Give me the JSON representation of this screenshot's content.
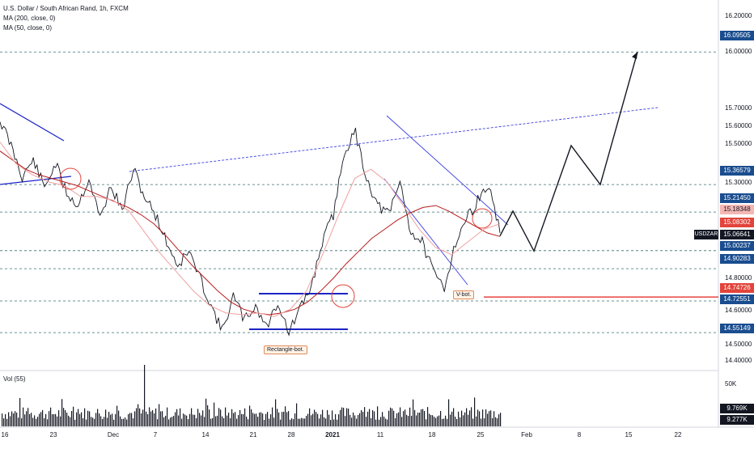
{
  "header": {
    "title": "U.S. Dollar / South African Rand, 1h, FXCM",
    "ma_200": "MA (200, close, 0)",
    "ma_50": "MA (50, close, 0)"
  },
  "volume_panel": {
    "label": "Vol (55)",
    "scale_label": "50K",
    "badge_1": "9.769K",
    "badge_2": "9.277K"
  },
  "chart_data": {
    "type": "line",
    "symbol": "USDZAR",
    "y_axis_ticks": [
      "16.20000",
      "16.00000",
      "15.70000",
      "15.60000",
      "15.50000",
      "15.30000",
      "14.80000",
      "14.60000",
      "14.50000",
      "14.40000"
    ],
    "x_ticks": [
      "16",
      "23",
      "Dec",
      "7",
      "14",
      "21",
      "28",
      "2021",
      "11",
      "18",
      "25",
      "Feb",
      "8",
      "15",
      "22"
    ],
    "price_labels": [
      {
        "value": "16.09505",
        "color": "#1a4d8f"
      },
      {
        "value": "15.36579",
        "color": "#1a4d8f"
      },
      {
        "value": "15.21450",
        "color": "#1a4d8f"
      },
      {
        "value": "15.18348",
        "color": "#f4b7b4"
      },
      {
        "value": "15.08302",
        "color": "#e2443b"
      },
      {
        "value": "15.06641",
        "color": "#131722"
      },
      {
        "value": "15.00237",
        "color": "#1a4d8f"
      },
      {
        "value": "14.90283",
        "color": "#1a4d8f"
      },
      {
        "value": "14.74726",
        "color": "#e2443b"
      },
      {
        "value": "14.72551",
        "color": "#1a4d8f"
      },
      {
        "value": "14.55149",
        "color": "#1a4d8f"
      }
    ],
    "last_price_tag": "USDZAR",
    "horizontal_levels": [
      16.09505,
      15.36579,
      15.2145,
      15.00237,
      14.90283,
      14.72551,
      14.55149
    ],
    "red_level": 14.74726,
    "annotations": [
      "Rectangle-bot.",
      "V-bot."
    ],
    "series": [
      {
        "name": "USDZAR",
        "values": [
          15.72,
          15.58,
          15.41,
          15.5,
          15.35,
          15.48,
          15.32,
          15.25,
          15.4,
          15.18,
          15.36,
          15.22,
          15.45,
          15.3,
          15.2,
          15.05,
          14.92,
          15.0,
          14.85,
          14.7,
          14.56,
          14.75,
          14.62,
          14.7,
          14.58,
          14.72,
          14.55,
          14.68,
          14.8,
          15.05,
          15.2,
          15.55,
          15.65,
          15.4,
          15.25,
          15.2,
          15.38,
          15.1,
          15.05,
          14.88,
          14.8,
          15.05,
          15.18,
          15.28,
          15.36,
          15.1
        ]
      },
      {
        "name": "MA (200, close, 0)",
        "values": [
          15.55,
          15.5,
          15.45,
          15.42,
          15.4,
          15.38,
          15.36,
          15.33,
          15.3,
          15.27,
          15.24,
          15.2,
          15.15,
          15.08,
          15.0,
          14.92,
          14.85,
          14.78,
          14.72,
          14.68,
          14.66,
          14.65,
          14.66,
          14.68,
          14.72,
          14.78,
          14.85,
          14.93,
          15.0,
          15.07,
          15.12,
          15.17,
          15.21,
          15.24,
          15.25,
          15.22,
          15.18,
          15.14,
          15.1,
          15.08
        ]
      },
      {
        "name": "MA (50, close, 0)",
        "values": [
          15.6,
          15.48,
          15.42,
          15.38,
          15.36,
          15.3,
          15.3,
          15.28,
          15.22,
          15.1,
          14.98,
          14.88,
          14.78,
          14.7,
          14.66,
          14.65,
          14.66,
          14.64,
          14.68,
          14.78,
          14.98,
          15.2,
          15.4,
          15.45,
          15.38,
          15.25,
          15.12,
          15.02,
          14.98,
          15.05,
          15.12,
          15.15
        ]
      }
    ],
    "projection": [
      15.08302,
      15.22,
      15.0,
      15.58,
      15.36579,
      16.09505
    ]
  }
}
